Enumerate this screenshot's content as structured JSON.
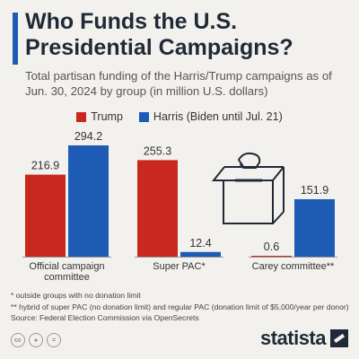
{
  "title": "Who Funds the U.S. Presidential Campaigns?",
  "subtitle": "Total partisan funding of the Harris/Trump campaigns as of Jun. 30, 2024 by group (in million U.S. dollars)",
  "colors": {
    "trump": "#c8281e",
    "harris": "#1e5bb5",
    "accent": "#1e5bb5"
  },
  "chart_data": {
    "type": "bar",
    "categories": [
      "Official campaign committee",
      "Super PAC*",
      "Carey committee**"
    ],
    "series": [
      {
        "name": "Trump",
        "values": [
          216.9,
          255.3,
          0.6
        ]
      },
      {
        "name": "Harris (Biden until Jul. 21)",
        "values": [
          294.2,
          12.4,
          151.9
        ]
      }
    ],
    "value_labels": [
      [
        "216.9",
        "255.3",
        "0.6"
      ],
      [
        "294.2",
        "12.4",
        "151.9"
      ]
    ],
    "category_lines": [
      [
        "Official campaign",
        "committee"
      ],
      [
        "Super PAC*"
      ],
      [
        "Carey committee**"
      ]
    ],
    "legend_position": "top",
    "grid": false
  },
  "notes": [
    "*   outside groups with no donation limit",
    "** hybrid of super PAC (no donation limit) and regular PAC (donation limit of $5,000/year per donor)",
    "Source: Federal Election Commission via OpenSecrets"
  ],
  "icons": [
    "ballot-box-icon",
    "creative-commons-icon",
    "attribution-icon",
    "no-derivatives-icon",
    "statista-logo-icon"
  ],
  "brand": "statista"
}
